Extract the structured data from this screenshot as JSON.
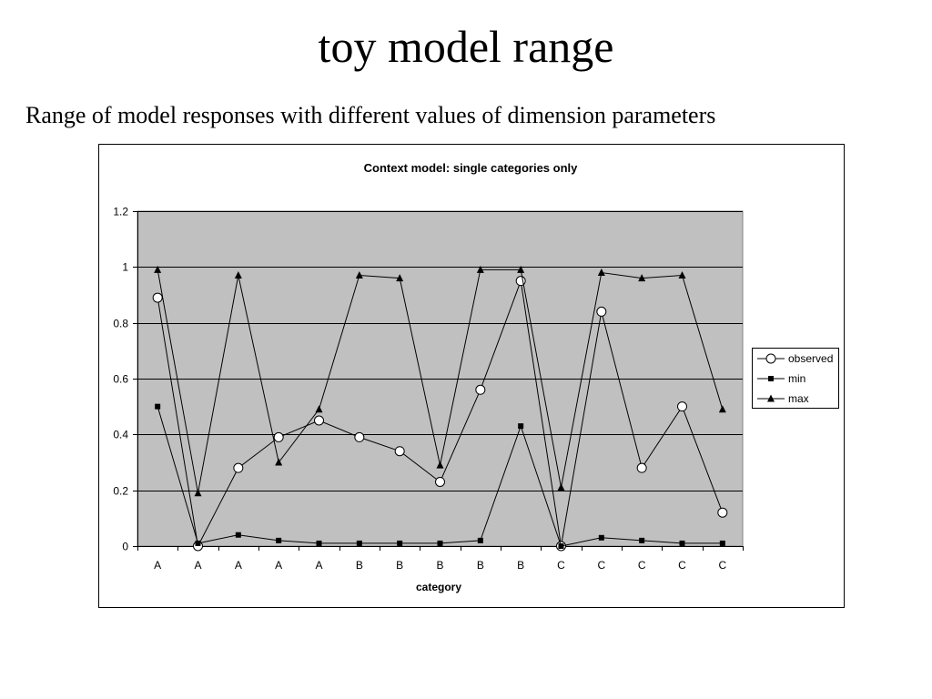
{
  "slide": {
    "title": "toy model range",
    "subtitle": "Range of model responses with different values of dimension parameters"
  },
  "chart_data": {
    "type": "line",
    "title": "Context model: single categories only",
    "xlabel": "category",
    "ylabel": "",
    "ylim": [
      0,
      1.2
    ],
    "yticks": [
      "0",
      "0.2",
      "0.4",
      "0.6",
      "0.8",
      "1",
      "1.2"
    ],
    "categories": [
      "A",
      "A",
      "A",
      "A",
      "A",
      "B",
      "B",
      "B",
      "B",
      "B",
      "C",
      "C",
      "C",
      "C",
      "C"
    ],
    "grid": "horizontal",
    "legend_position": "right",
    "plot_background": "#c0c0c0",
    "series": [
      {
        "name": "observed",
        "marker": "open-circle",
        "color": "#000000",
        "values": [
          0.89,
          0.0,
          0.28,
          0.39,
          0.45,
          0.39,
          0.34,
          0.23,
          0.56,
          0.95,
          0.0,
          0.84,
          0.28,
          0.5,
          0.12
        ]
      },
      {
        "name": "min",
        "marker": "filled-square",
        "color": "#000000",
        "values": [
          0.5,
          0.01,
          0.04,
          0.02,
          0.01,
          0.01,
          0.01,
          0.01,
          0.02,
          0.43,
          0.0,
          0.03,
          0.02,
          0.01,
          0.01
        ]
      },
      {
        "name": "max",
        "marker": "filled-triangle",
        "color": "#000000",
        "values": [
          0.99,
          0.19,
          0.97,
          0.3,
          0.49,
          0.97,
          0.96,
          0.29,
          0.99,
          0.99,
          0.21,
          0.98,
          0.96,
          0.97,
          0.49
        ]
      }
    ]
  }
}
